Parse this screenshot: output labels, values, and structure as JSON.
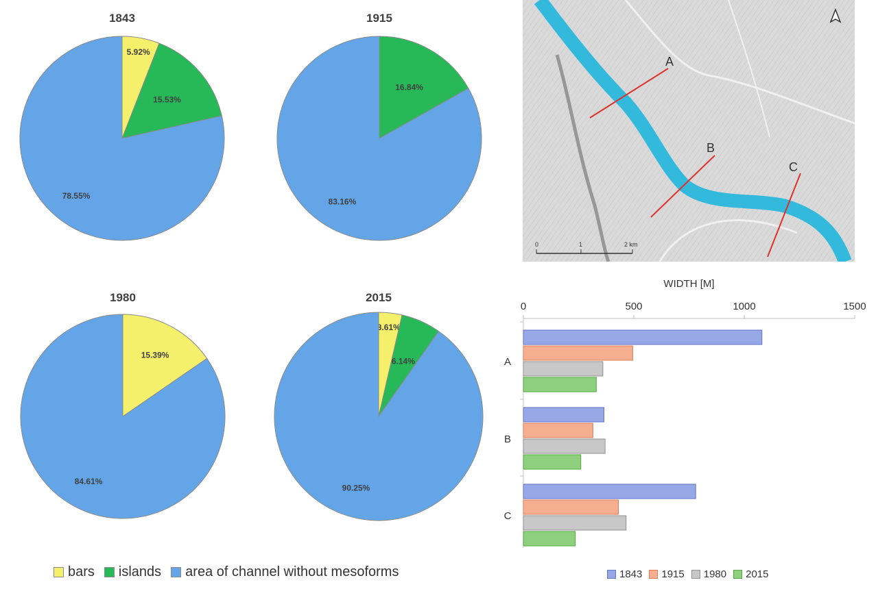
{
  "chart_data": [
    {
      "type": "pie",
      "title": "1843",
      "slices": [
        {
          "category": "bars",
          "value": 5.92,
          "label": "5.92%"
        },
        {
          "category": "islands",
          "value": 15.53,
          "label": "15.53%"
        },
        {
          "category": "channel",
          "value": 78.55,
          "label": "78.55%"
        }
      ]
    },
    {
      "type": "pie",
      "title": "1915",
      "slices": [
        {
          "category": "islands",
          "value": 16.84,
          "label": "16.84%"
        },
        {
          "category": "channel",
          "value": 83.16,
          "label": "83.16%"
        }
      ]
    },
    {
      "type": "pie",
      "title": "1980",
      "slices": [
        {
          "category": "bars",
          "value": 15.39,
          "label": "15.39%"
        },
        {
          "category": "channel",
          "value": 84.61,
          "label": "84.61%"
        }
      ]
    },
    {
      "type": "pie",
      "title": "2015",
      "slices": [
        {
          "category": "bars",
          "value": 3.61,
          "label": "3.61%"
        },
        {
          "category": "islands",
          "value": 6.14,
          "label": "6.14%"
        },
        {
          "category": "channel",
          "value": 90.25,
          "label": "90.25%"
        }
      ]
    },
    {
      "type": "bar",
      "orientation": "horizontal",
      "xlabel": "WIDTH [M]",
      "xlim": [
        0,
        1500
      ],
      "xticks": [
        0,
        500,
        1000,
        1500
      ],
      "categories": [
        "A",
        "B",
        "C"
      ],
      "series": [
        {
          "name": "1843",
          "values": [
            1080,
            365,
            780
          ]
        },
        {
          "name": "1915",
          "values": [
            495,
            315,
            430
          ]
        },
        {
          "name": "1980",
          "values": [
            360,
            370,
            465
          ]
        },
        {
          "name": "2015",
          "values": [
            330,
            260,
            235
          ]
        }
      ],
      "legend_position": "bottom"
    }
  ],
  "pie_legend": [
    {
      "key": "bars",
      "label": "bars",
      "color": "#f5f06b"
    },
    {
      "key": "islands",
      "label": "islands",
      "color": "#27b957"
    },
    {
      "key": "channel",
      "label": "area of channel without mesoforms",
      "color": "#64a5e7"
    }
  ],
  "bar_colors": {
    "1843": "#98a8e6",
    "1915": "#f6ae90",
    "1980": "#c8c8c8",
    "2015": "#8fd07e"
  },
  "map": {
    "profile_labels": [
      "A",
      "B",
      "C"
    ],
    "scale_labels": [
      "0",
      "1",
      "2 km"
    ],
    "river_color": "#33b9dc",
    "profile_color": "#e0302a"
  }
}
